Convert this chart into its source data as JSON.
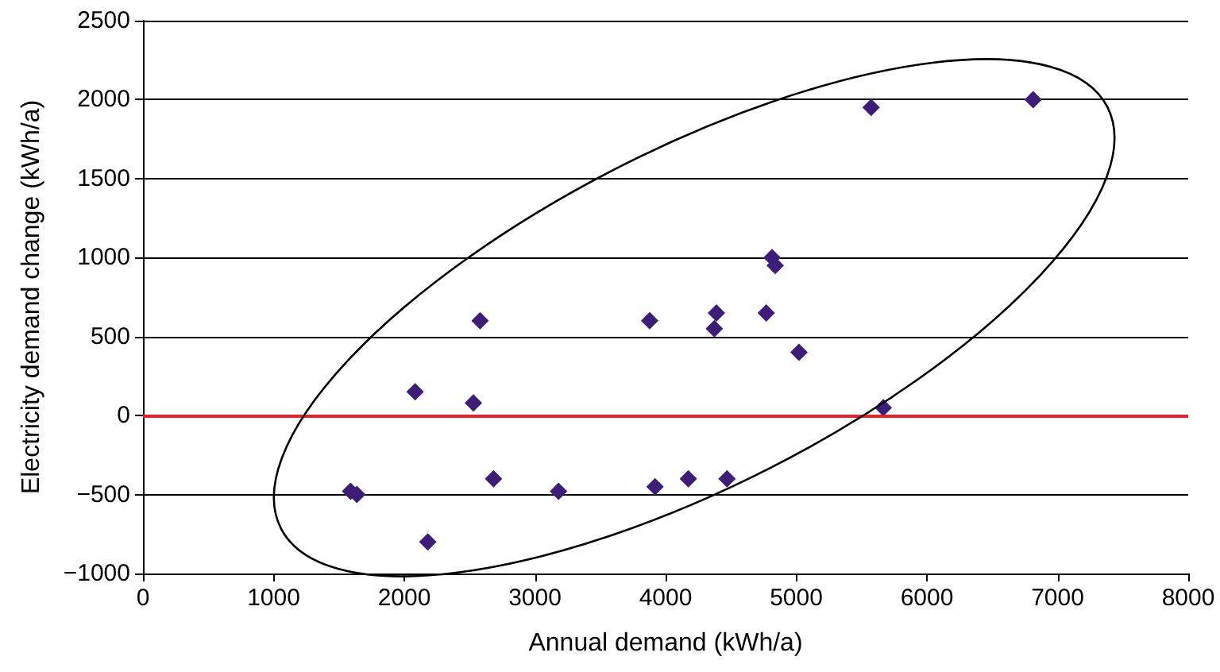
{
  "chart_data": {
    "type": "scatter",
    "xlabel": "Annual demand (kWh/a)",
    "ylabel": "Electricity demand change (kWh/a)",
    "x": [
      2580,
      2083,
      2529,
      1589,
      1637,
      2683,
      3181,
      2180,
      3878,
      4389,
      4373,
      4770,
      4815,
      4839,
      5021,
      5666,
      3919,
      4174,
      4470,
      5573,
      6813
    ],
    "series": [
      {
        "color": "#3c1e78",
        "values": [
          600,
          150,
          80,
          -480,
          -500,
          -400,
          -480,
          -800,
          600,
          650,
          550,
          650,
          1000,
          950,
          400,
          50,
          -450,
          -400,
          -400,
          1950,
          2000
        ]
      }
    ],
    "xlim": [
      0,
      8000
    ],
    "xticks": [
      0,
      1000,
      2000,
      3000,
      4000,
      5000,
      6000,
      7000,
      8000
    ],
    "ylim": [
      -1000,
      2500
    ],
    "yticks": [
      {
        "value": -1000,
        "label": "−1000"
      },
      {
        "value": -500,
        "label": "−500"
      },
      0,
      500,
      1000,
      1500,
      2000,
      2500
    ],
    "ref_lines": [
      {
        "axis": "y",
        "value": 0,
        "color": "#e8202a"
      }
    ],
    "grid": "y",
    "marker": "diamond"
  }
}
